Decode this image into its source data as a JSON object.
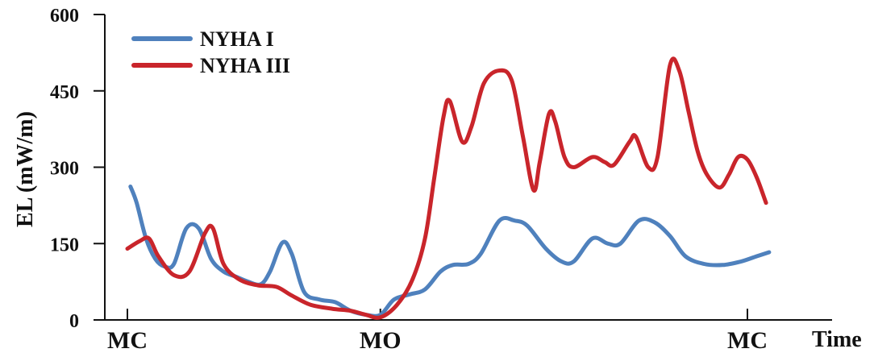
{
  "chart_data": {
    "type": "line",
    "title": "",
    "ylabel": "EL (mW/m)",
    "xlabel": "Time",
    "ylim": [
      0,
      600
    ],
    "yticks": [
      0,
      150,
      300,
      450,
      600
    ],
    "xlim": [
      0,
      100
    ],
    "xticks": [
      {
        "x": 0,
        "label": "MC"
      },
      {
        "x": 40.8,
        "label": "MO"
      },
      {
        "x": 100,
        "label": "MC"
      }
    ],
    "legend_position": "top-left",
    "grid": false,
    "series": [
      {
        "name": "NYHA I",
        "color": "#4f81bd",
        "points": [
          [
            0.5,
            262
          ],
          [
            1.5,
            230
          ],
          [
            3,
            160
          ],
          [
            4.5,
            120
          ],
          [
            6,
            105
          ],
          [
            7.5,
            110
          ],
          [
            9.5,
            180
          ],
          [
            11.5,
            180
          ],
          [
            13.5,
            120
          ],
          [
            15.5,
            95
          ],
          [
            17.5,
            85
          ],
          [
            19.5,
            75
          ],
          [
            21.5,
            70
          ],
          [
            23,
            95
          ],
          [
            25,
            152
          ],
          [
            26.5,
            130
          ],
          [
            28.5,
            55
          ],
          [
            31,
            40
          ],
          [
            33.5,
            35
          ],
          [
            36,
            18
          ],
          [
            38.5,
            10
          ],
          [
            40.8,
            10
          ],
          [
            43,
            40
          ],
          [
            45.5,
            50
          ],
          [
            48,
            60
          ],
          [
            50.5,
            95
          ],
          [
            52.5,
            108
          ],
          [
            55,
            110
          ],
          [
            57,
            130
          ],
          [
            60,
            195
          ],
          [
            62.5,
            195
          ],
          [
            64.5,
            185
          ],
          [
            67.5,
            140
          ],
          [
            70,
            115
          ],
          [
            72,
            115
          ],
          [
            75,
            160
          ],
          [
            77.5,
            150
          ],
          [
            79.5,
            150
          ],
          [
            82.5,
            195
          ],
          [
            85,
            192
          ],
          [
            87.5,
            165
          ],
          [
            90,
            125
          ],
          [
            93,
            110
          ],
          [
            96,
            108
          ],
          [
            99,
            115
          ],
          [
            101.5,
            125
          ],
          [
            103.5,
            133
          ]
        ]
      },
      {
        "name": "NYHA III",
        "color": "#c9252b",
        "points": [
          [
            0,
            140
          ],
          [
            2,
            155
          ],
          [
            3.5,
            160
          ],
          [
            5,
            125
          ],
          [
            7.5,
            88
          ],
          [
            10,
            95
          ],
          [
            12.5,
            170
          ],
          [
            13.8,
            180
          ],
          [
            15.5,
            110
          ],
          [
            18,
            80
          ],
          [
            21,
            68
          ],
          [
            24,
            65
          ],
          [
            26.5,
            48
          ],
          [
            29.5,
            30
          ],
          [
            33,
            22
          ],
          [
            36,
            18
          ],
          [
            38.5,
            10
          ],
          [
            40.8,
            5
          ],
          [
            43.5,
            30
          ],
          [
            46,
            80
          ],
          [
            48,
            160
          ],
          [
            49.5,
            280
          ],
          [
            51,
            400
          ],
          [
            52,
            430
          ],
          [
            54,
            350
          ],
          [
            55.5,
            380
          ],
          [
            57.5,
            465
          ],
          [
            60,
            490
          ],
          [
            62,
            470
          ],
          [
            63.8,
            360
          ],
          [
            65.5,
            255
          ],
          [
            66.5,
            310
          ],
          [
            68,
            405
          ],
          [
            69,
            390
          ],
          [
            70.5,
            320
          ],
          [
            72,
            300
          ],
          [
            75,
            320
          ],
          [
            77,
            310
          ],
          [
            78.5,
            305
          ],
          [
            81,
            350
          ],
          [
            82,
            360
          ],
          [
            84,
            300
          ],
          [
            85.5,
            320
          ],
          [
            87.5,
            500
          ],
          [
            89,
            490
          ],
          [
            90.5,
            410
          ],
          [
            92,
            330
          ],
          [
            93.5,
            285
          ],
          [
            95.5,
            260
          ],
          [
            97,
            285
          ],
          [
            98.5,
            320
          ],
          [
            100,
            315
          ],
          [
            101.5,
            280
          ],
          [
            103,
            230
          ]
        ]
      }
    ]
  }
}
